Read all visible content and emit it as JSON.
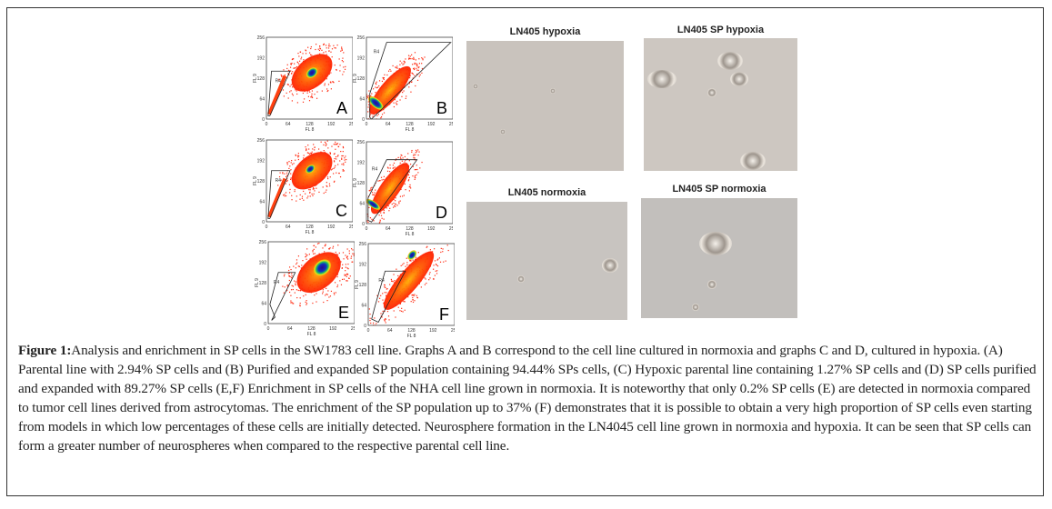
{
  "flow_plots": {
    "x_axis_label": "FL 8",
    "y_axis_label": "FL 9",
    "gate_label": "R4",
    "ticks": [
      "0",
      "64",
      "128",
      "192",
      "256"
    ],
    "panels": [
      {
        "letter": "A"
      },
      {
        "letter": "B"
      },
      {
        "letter": "C"
      },
      {
        "letter": "D"
      },
      {
        "letter": "E"
      },
      {
        "letter": "F"
      }
    ]
  },
  "photos": [
    {
      "title": "LN405 hypoxia"
    },
    {
      "title": "LN405 SP hypoxia"
    },
    {
      "title": "LN405 normoxia"
    },
    {
      "title": "LN405 SP normoxia"
    }
  ],
  "caption": {
    "label": "Figure 1:",
    "text": "Analysis and enrichment in SP cells in the SW1783 cell line. Graphs A and B correspond to the cell line cultured in normoxia and graphs C and D, cultured in hypoxia. (A) Parental line with 2.94% SP cells and (B) Purified and expanded SP population containing 94.44% SPs cells, (C) Hypoxic parental line containing 1.27% SP cells and (D) SP cells purified and expanded with 89.27% SP cells (E,F) Enrichment in SP cells of the NHA cell line grown in normoxia. It is noteworthy that only 0.2% SP cells (E) are detected in normoxia compared to tumor cell lines derived from astrocytomas. The enrichment of the SP population up to 37% (F) demonstrates that it is possible to obtain a very high proportion of SP cells even starting from models in which low percentages of these cells are initially detected. Neurosphere formation in the LN4045 cell line grown in normoxia and hypoxia. It can be seen that SP cells can form a greater number of neurospheres when compared to the respective parental cell line."
  }
}
